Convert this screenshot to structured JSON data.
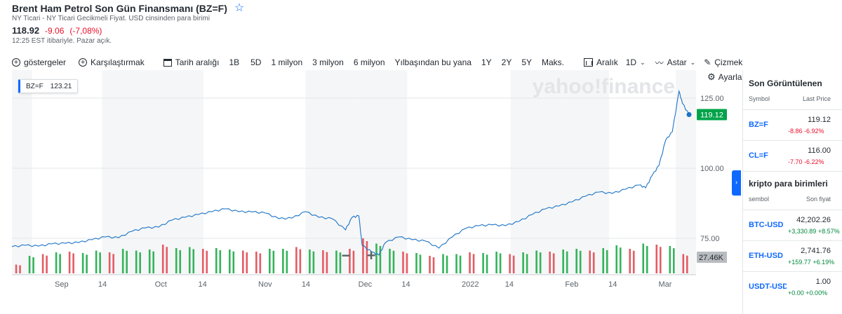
{
  "header": {
    "title": "Brent Ham Petrol Son Gün Finansmanı (BZ=F)",
    "subtitle": "NY Ticari - NY Ticari Gecikmeli Fiyat. USD cinsinden para birimi",
    "price": "118.92",
    "change": "-9.06",
    "change_pct": "(-7,08%)",
    "time": "12:25 EST itibariyle. Pazar açık."
  },
  "toolbar": {
    "indicators": "göstergeler",
    "compare": "Karşılaştırmak",
    "date_range": "Tarih aralığı",
    "ranges": [
      "1B",
      "5D",
      "1 milyon",
      "3 milyon",
      "6 milyon",
      "Yılbaşından bu yana",
      "1Y",
      "2Y",
      "5Y",
      "Maks."
    ],
    "interval_label": "Aralık",
    "interval_value": "1D",
    "type_label": "Astar",
    "draw_label": "Çizmek",
    "settings_label": "Ayarlar"
  },
  "tooltip": {
    "symbol": "BZ=F",
    "value": "123.21"
  },
  "watermark": "yahoo!finance",
  "chart_data": {
    "type": "line",
    "symbol": "BZ=F",
    "current_price": "119.12",
    "volume_label": "27.46K",
    "y_ticks": [
      "125.00",
      "100.00",
      "75.00"
    ],
    "y_tick_values": [
      125,
      100,
      75
    ],
    "ylim": [
      62,
      135
    ],
    "x_ticks": [
      "Sep",
      "14",
      "Oct",
      "14",
      "Nov",
      "14",
      "Dec",
      "14",
      "2022",
      "14",
      "Feb",
      "14",
      "Mar"
    ],
    "x_tick_dates": [
      "2021-09-01",
      "2021-09-14",
      "2021-10-01",
      "2021-10-14",
      "2021-11-01",
      "2021-11-14",
      "2021-12-01",
      "2021-12-14",
      "2022-01-01",
      "2022-01-14",
      "2022-02-01",
      "2022-02-14",
      "2022-03-01"
    ],
    "x_range": [
      "2021-08-20",
      "2022-03-11"
    ],
    "price_series": [
      [
        "2021-08-20",
        72.0
      ],
      [
        "2021-08-24",
        72.5
      ],
      [
        "2021-08-28",
        72.2
      ],
      [
        "2021-09-01",
        73.0
      ],
      [
        "2021-09-05",
        73.2
      ],
      [
        "2021-09-09",
        73.5
      ],
      [
        "2021-09-13",
        74.5
      ],
      [
        "2021-09-17",
        75.5
      ],
      [
        "2021-09-21",
        75.2
      ],
      [
        "2021-09-25",
        77.5
      ],
      [
        "2021-09-29",
        78.7
      ],
      [
        "2021-10-03",
        79.0
      ],
      [
        "2021-10-07",
        81.5
      ],
      [
        "2021-10-11",
        82.5
      ],
      [
        "2021-10-15",
        83.5
      ],
      [
        "2021-10-19",
        84.5
      ],
      [
        "2021-10-23",
        85.5
      ],
      [
        "2021-10-27",
        84.5
      ],
      [
        "2021-10-31",
        84.4
      ],
      [
        "2021-11-04",
        84.0
      ],
      [
        "2021-11-08",
        82.0
      ],
      [
        "2021-11-12",
        82.2
      ],
      [
        "2021-11-16",
        84.5
      ],
      [
        "2021-11-20",
        82.5
      ],
      [
        "2021-11-24",
        82.0
      ],
      [
        "2021-11-28",
        78.0
      ],
      [
        "2021-11-30",
        82.5
      ],
      [
        "2021-12-02",
        83.0
      ],
      [
        "2021-12-03",
        72.5
      ],
      [
        "2021-12-06",
        70.0
      ],
      [
        "2021-12-08",
        69.0
      ],
      [
        "2021-12-10",
        73.5
      ],
      [
        "2021-12-14",
        75.5
      ],
      [
        "2021-12-18",
        74.5
      ],
      [
        "2021-12-22",
        74.0
      ],
      [
        "2021-12-26",
        71.5
      ],
      [
        "2021-12-30",
        75.5
      ],
      [
        "2022-01-03",
        78.5
      ],
      [
        "2022-01-07",
        79.5
      ],
      [
        "2022-01-11",
        79.8
      ],
      [
        "2022-01-15",
        79.5
      ],
      [
        "2022-01-19",
        81.0
      ],
      [
        "2022-01-23",
        83.5
      ],
      [
        "2022-01-27",
        85.5
      ],
      [
        "2022-01-31",
        86.5
      ],
      [
        "2022-02-04",
        88.0
      ],
      [
        "2022-02-08",
        90.0
      ],
      [
        "2022-02-12",
        91.5
      ],
      [
        "2022-02-16",
        91.0
      ],
      [
        "2022-02-20",
        92.5
      ],
      [
        "2022-02-24",
        94.0
      ],
      [
        "2022-02-26",
        93.0
      ],
      [
        "2022-02-28",
        97.5
      ],
      [
        "2022-03-02",
        101.0
      ],
      [
        "2022-03-04",
        110.0
      ],
      [
        "2022-03-06",
        113.0
      ],
      [
        "2022-03-08",
        127.5
      ],
      [
        "2022-03-09",
        123.2
      ],
      [
        "2022-03-11",
        119.12
      ]
    ],
    "volume_series": [
      {
        "date": "2021-08-21",
        "v": 0.25,
        "dir": "down"
      },
      {
        "date": "2021-08-25",
        "v": 0.5,
        "dir": "up"
      },
      {
        "date": "2021-08-29",
        "v": 0.55,
        "dir": "down"
      },
      {
        "date": "2021-09-02",
        "v": 0.6,
        "dir": "up"
      },
      {
        "date": "2021-09-06",
        "v": 0.62,
        "dir": "down"
      },
      {
        "date": "2021-09-10",
        "v": 0.58,
        "dir": "up"
      },
      {
        "date": "2021-09-14",
        "v": 0.65,
        "dir": "up"
      },
      {
        "date": "2021-09-18",
        "v": 0.6,
        "dir": "down"
      },
      {
        "date": "2021-09-22",
        "v": 0.7,
        "dir": "up"
      },
      {
        "date": "2021-09-26",
        "v": 0.65,
        "dir": "up"
      },
      {
        "date": "2021-09-30",
        "v": 0.68,
        "dir": "up"
      },
      {
        "date": "2021-10-04",
        "v": 0.82,
        "dir": "down"
      },
      {
        "date": "2021-10-08",
        "v": 0.72,
        "dir": "up"
      },
      {
        "date": "2021-10-12",
        "v": 0.75,
        "dir": "up"
      },
      {
        "date": "2021-10-16",
        "v": 0.7,
        "dir": "down"
      },
      {
        "date": "2021-10-20",
        "v": 0.72,
        "dir": "up"
      },
      {
        "date": "2021-10-24",
        "v": 0.68,
        "dir": "up"
      },
      {
        "date": "2021-10-28",
        "v": 0.65,
        "dir": "down"
      },
      {
        "date": "2021-11-01",
        "v": 0.62,
        "dir": "down"
      },
      {
        "date": "2021-11-05",
        "v": 0.7,
        "dir": "up"
      },
      {
        "date": "2021-11-09",
        "v": 0.7,
        "dir": "up"
      },
      {
        "date": "2021-11-13",
        "v": 0.75,
        "dir": "down"
      },
      {
        "date": "2021-11-17",
        "v": 0.68,
        "dir": "up"
      },
      {
        "date": "2021-11-21",
        "v": 0.66,
        "dir": "down"
      },
      {
        "date": "2021-11-25",
        "v": 0.65,
        "dir": "up"
      },
      {
        "date": "2021-11-29",
        "v": 0.7,
        "dir": "down"
      },
      {
        "date": "2021-12-03",
        "v": 1.0,
        "dir": "down"
      },
      {
        "date": "2021-12-07",
        "v": 0.85,
        "dir": "up"
      },
      {
        "date": "2021-12-11",
        "v": 0.7,
        "dir": "up"
      },
      {
        "date": "2021-12-15",
        "v": 0.62,
        "dir": "down"
      },
      {
        "date": "2021-12-19",
        "v": 0.58,
        "dir": "up"
      },
      {
        "date": "2021-12-23",
        "v": 0.5,
        "dir": "down"
      },
      {
        "date": "2021-12-27",
        "v": 0.55,
        "dir": "up"
      },
      {
        "date": "2021-12-31",
        "v": 0.55,
        "dir": "up"
      },
      {
        "date": "2022-01-04",
        "v": 0.6,
        "dir": "down"
      },
      {
        "date": "2022-01-08",
        "v": 0.58,
        "dir": "up"
      },
      {
        "date": "2022-01-12",
        "v": 0.62,
        "dir": "up"
      },
      {
        "date": "2022-01-16",
        "v": 0.55,
        "dir": "down"
      },
      {
        "date": "2022-01-20",
        "v": 0.6,
        "dir": "up"
      },
      {
        "date": "2022-01-24",
        "v": 0.65,
        "dir": "up"
      },
      {
        "date": "2022-01-28",
        "v": 0.62,
        "dir": "down"
      },
      {
        "date": "2022-02-01",
        "v": 0.68,
        "dir": "up"
      },
      {
        "date": "2022-02-05",
        "v": 0.7,
        "dir": "up"
      },
      {
        "date": "2022-02-09",
        "v": 0.65,
        "dir": "down"
      },
      {
        "date": "2022-02-13",
        "v": 0.72,
        "dir": "up"
      },
      {
        "date": "2022-02-17",
        "v": 0.8,
        "dir": "up"
      },
      {
        "date": "2022-02-21",
        "v": 0.7,
        "dir": "down"
      },
      {
        "date": "2022-02-25",
        "v": 0.85,
        "dir": "up"
      },
      {
        "date": "2022-03-01",
        "v": 0.82,
        "dir": "down"
      },
      {
        "date": "2022-03-05",
        "v": 0.78,
        "dir": "up"
      },
      {
        "date": "2022-03-09",
        "v": 0.55,
        "dir": "down"
      }
    ]
  },
  "sidebar": {
    "recent_title": "Son Görüntülenen",
    "col_symbol": "Symbol",
    "col_last": "Last Price",
    "recent": [
      {
        "symbol": "BZ=F",
        "price": "119.12",
        "change": "-8.86",
        "pct": "-6.92%",
        "dir": "neg"
      },
      {
        "symbol": "CL=F",
        "price": "116.00",
        "change": "-7.70",
        "pct": "-6.22%",
        "dir": "neg"
      }
    ],
    "crypto_title": "kripto para birimleri",
    "col_symbol2": "sembol",
    "col_price2": "Son fiyat",
    "crypto": [
      {
        "symbol": "BTC-USD",
        "price": "42,202.26",
        "change": "+3,330.89",
        "pct": "+8.57%",
        "dir": "pos"
      },
      {
        "symbol": "ETH-USD",
        "price": "2,741.76",
        "change": "+159.77",
        "pct": "+6.19%",
        "dir": "pos"
      },
      {
        "symbol": "USDT-USD",
        "price": "1.00",
        "change": "+0.00",
        "pct": "+0.00%",
        "dir": "pos"
      }
    ]
  },
  "colors": {
    "line": "#1a73c7",
    "up_volume": "#34b35a",
    "down_volume": "#e45c64",
    "price_badge": "#00a34a",
    "accent": "#0f69ff"
  }
}
